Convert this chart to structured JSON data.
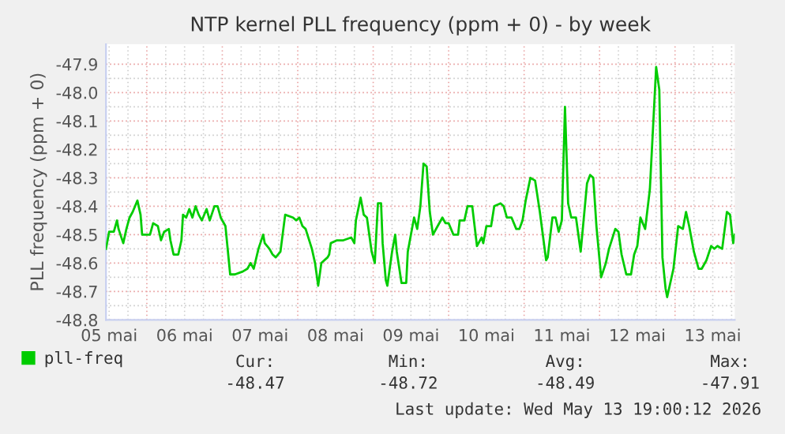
{
  "chart_data": {
    "type": "line",
    "title": "NTP kernel PLL frequency (ppm + 0) - by week",
    "ylabel": "PLL frequency (ppm + 0)",
    "x": [
      "2026-05-05T11:00",
      "2026-05-05T12:00",
      "2026-05-05T13:30",
      "2026-05-05T14:30",
      "2026-05-05T15:00",
      "2026-05-05T16:30",
      "2026-05-05T17:30",
      "2026-05-05T18:30",
      "2026-05-05T19:30",
      "2026-05-05T21:00",
      "2026-05-05T22:00",
      "2026-05-05T22:30",
      "2026-05-06T01:00",
      "2026-05-06T02:00",
      "2026-05-06T03:30",
      "2026-05-06T04:30",
      "2026-05-06T05:30",
      "2026-05-06T07:00",
      "2026-05-06T07:30",
      "2026-05-06T08:30",
      "2026-05-06T10:00",
      "2026-05-06T11:00",
      "2026-05-06T11:30",
      "2026-05-06T12:30",
      "2026-05-06T13:30",
      "2026-05-06T14:30",
      "2026-05-06T15:30",
      "2026-05-06T16:30",
      "2026-05-06T17:30",
      "2026-05-06T19:00",
      "2026-05-06T20:00",
      "2026-05-06T21:30",
      "2026-05-06T22:30",
      "2026-05-06T23:30",
      "2026-05-07T01:00",
      "2026-05-07T02:30",
      "2026-05-07T04:00",
      "2026-05-07T06:30",
      "2026-05-07T08:00",
      "2026-05-07T09:00",
      "2026-05-07T10:00",
      "2026-05-07T11:30",
      "2026-05-07T13:00",
      "2026-05-07T13:30",
      "2026-05-07T15:00",
      "2026-05-07T16:00",
      "2026-05-07T17:00",
      "2026-05-07T18:30",
      "2026-05-07T20:00",
      "2026-05-07T22:30",
      "2026-05-07T23:30",
      "2026-05-08T00:30",
      "2026-05-08T01:30",
      "2026-05-08T02:30",
      "2026-05-08T04:30",
      "2026-05-08T05:30",
      "2026-05-08T06:30",
      "2026-05-08T07:30",
      "2026-05-08T09:30",
      "2026-05-08T10:00",
      "2026-05-08T10:30",
      "2026-05-08T12:30",
      "2026-05-08T14:30",
      "2026-05-08T17:00",
      "2026-05-08T18:00",
      "2026-05-08T18:30",
      "2026-05-08T20:00",
      "2026-05-08T21:00",
      "2026-05-08T22:00",
      "2026-05-08T23:30",
      "2026-05-09T00:30",
      "2026-05-09T01:30",
      "2026-05-09T02:30",
      "2026-05-09T03:00",
      "2026-05-09T04:00",
      "2026-05-09T04:30",
      "2026-05-09T06:00",
      "2026-05-09T07:00",
      "2026-05-09T07:30",
      "2026-05-09T09:00",
      "2026-05-09T10:30",
      "2026-05-09T11:00",
      "2026-05-09T12:00",
      "2026-05-09T13:00",
      "2026-05-09T14:00",
      "2026-05-09T15:00",
      "2026-05-09T16:00",
      "2026-05-09T17:00",
      "2026-05-09T18:00",
      "2026-05-09T19:00",
      "2026-05-09T20:30",
      "2026-05-09T22:00",
      "2026-05-09T23:00",
      "2026-05-10T00:00",
      "2026-05-10T01:30",
      "2026-05-10T03:00",
      "2026-05-10T03:30",
      "2026-05-10T05:00",
      "2026-05-10T06:00",
      "2026-05-10T07:30",
      "2026-05-10T09:00",
      "2026-05-10T10:30",
      "2026-05-10T11:00",
      "2026-05-10T12:00",
      "2026-05-10T13:30",
      "2026-05-10T14:30",
      "2026-05-10T16:30",
      "2026-05-10T17:30",
      "2026-05-10T18:30",
      "2026-05-10T20:00",
      "2026-05-10T21:30",
      "2026-05-10T22:30",
      "2026-05-10T23:30",
      "2026-05-11T00:30",
      "2026-05-11T02:00",
      "2026-05-11T03:30",
      "2026-05-11T05:00",
      "2026-05-11T07:00",
      "2026-05-11T07:30",
      "2026-05-11T09:00",
      "2026-05-11T10:00",
      "2026-05-11T11:00",
      "2026-05-11T12:00",
      "2026-05-11T13:00",
      "2026-05-11T14:00",
      "2026-05-11T15:00",
      "2026-05-11T16:30",
      "2026-05-11T18:00",
      "2026-05-11T20:00",
      "2026-05-11T21:00",
      "2026-05-11T22:00",
      "2026-05-11T23:00",
      "2026-05-12T00:30",
      "2026-05-12T02:00",
      "2026-05-12T03:00",
      "2026-05-12T05:00",
      "2026-05-12T06:00",
      "2026-05-12T07:00",
      "2026-05-12T08:30",
      "2026-05-12T10:00",
      "2026-05-12T11:00",
      "2026-05-12T12:00",
      "2026-05-12T13:00",
      "2026-05-12T14:30",
      "2026-05-12T16:00",
      "2026-05-12T18:00",
      "2026-05-12T19:00",
      "2026-05-12T19:30",
      "2026-05-12T20:00",
      "2026-05-12T21:00",
      "2026-05-12T21:30",
      "2026-05-12T22:30",
      "2026-05-12T23:30",
      "2026-05-13T01:00",
      "2026-05-13T02:30",
      "2026-05-13T03:30",
      "2026-05-13T04:30",
      "2026-05-13T06:00",
      "2026-05-13T07:30",
      "2026-05-13T08:30",
      "2026-05-13T10:00",
      "2026-05-13T11:30",
      "2026-05-13T12:30",
      "2026-05-13T13:30",
      "2026-05-13T15:00",
      "2026-05-13T16:30",
      "2026-05-13T17:30",
      "2026-05-13T18:30",
      "2026-05-13T19:00"
    ],
    "series": [
      {
        "name": "pll-freq",
        "color": "#00cc00",
        "values": [
          -48.55,
          -48.49,
          -48.49,
          -48.45,
          -48.48,
          -48.53,
          -48.48,
          -48.44,
          -48.42,
          -48.38,
          -48.43,
          -48.5,
          -48.5,
          -48.46,
          -48.47,
          -48.52,
          -48.49,
          -48.48,
          -48.52,
          -48.57,
          -48.57,
          -48.52,
          -48.43,
          -48.44,
          -48.41,
          -48.44,
          -48.4,
          -48.43,
          -48.45,
          -48.41,
          -48.45,
          -48.4,
          -48.4,
          -48.44,
          -48.47,
          -48.64,
          -48.64,
          -48.63,
          -48.62,
          -48.6,
          -48.62,
          -48.55,
          -48.5,
          -48.53,
          -48.55,
          -48.57,
          -48.58,
          -48.56,
          -48.43,
          -48.44,
          -48.45,
          -48.44,
          -48.47,
          -48.48,
          -48.55,
          -48.6,
          -48.68,
          -48.6,
          -48.58,
          -48.57,
          -48.53,
          -48.52,
          -48.52,
          -48.51,
          -48.53,
          -48.45,
          -48.37,
          -48.43,
          -48.44,
          -48.56,
          -48.6,
          -48.39,
          -48.39,
          -48.53,
          -48.66,
          -48.68,
          -48.56,
          -48.5,
          -48.56,
          -48.67,
          -48.67,
          -48.56,
          -48.5,
          -48.44,
          -48.48,
          -48.4,
          -48.25,
          -48.26,
          -48.42,
          -48.5,
          -48.47,
          -48.44,
          -48.46,
          -48.46,
          -48.5,
          -48.5,
          -48.45,
          -48.45,
          -48.4,
          -48.4,
          -48.54,
          -48.51,
          -48.53,
          -48.47,
          -48.47,
          -48.4,
          -48.39,
          -48.4,
          -48.44,
          -48.44,
          -48.48,
          -48.48,
          -48.45,
          -48.38,
          -48.3,
          -48.31,
          -48.42,
          -48.59,
          -48.58,
          -48.44,
          -48.44,
          -48.49,
          -48.45,
          -48.05,
          -48.39,
          -48.44,
          -48.44,
          -48.56,
          -48.32,
          -48.29,
          -48.3,
          -48.47,
          -48.65,
          -48.6,
          -48.55,
          -48.48,
          -48.49,
          -48.57,
          -48.64,
          -48.64,
          -48.57,
          -48.54,
          -48.44,
          -48.48,
          -48.34,
          -47.91,
          -47.99,
          -48.29,
          -48.58,
          -48.69,
          -48.72,
          -48.67,
          -48.62,
          -48.47,
          -48.48,
          -48.42,
          -48.47,
          -48.56,
          -48.62,
          -48.62,
          -48.59,
          -48.54,
          -48.55,
          -48.54,
          -48.55,
          -48.42,
          -48.43,
          -48.53,
          -48.5
        ]
      }
    ],
    "xlim": [
      "2026-05-05T11:00",
      "2026-05-13T19:00"
    ],
    "xticks": [
      {
        "value": "2026-05-05T12:00",
        "label": "05 mai"
      },
      {
        "value": "2026-05-06T12:00",
        "label": "06 mai"
      },
      {
        "value": "2026-05-07T12:00",
        "label": "07 mai"
      },
      {
        "value": "2026-05-08T12:00",
        "label": "08 mai"
      },
      {
        "value": "2026-05-09T12:00",
        "label": "09 mai"
      },
      {
        "value": "2026-05-10T12:00",
        "label": "10 mai"
      },
      {
        "value": "2026-05-11T12:00",
        "label": "11 mai"
      },
      {
        "value": "2026-05-12T12:00",
        "label": "12 mai"
      },
      {
        "value": "2026-05-13T12:00",
        "label": "13 mai"
      }
    ],
    "ylim": [
      -48.8,
      -47.83
    ],
    "yticks": [
      {
        "value": -48.8,
        "label": "-48.8"
      },
      {
        "value": -48.7,
        "label": "-48.7"
      },
      {
        "value": -48.6,
        "label": "-48.6"
      },
      {
        "value": -48.5,
        "label": "-48.5"
      },
      {
        "value": -48.4,
        "label": "-48.4"
      },
      {
        "value": -48.3,
        "label": "-48.3"
      },
      {
        "value": -48.2,
        "label": "-48.2"
      },
      {
        "value": -48.1,
        "label": "-48.1"
      },
      {
        "value": -48.0,
        "label": "-48.0"
      },
      {
        "value": -47.9,
        "label": "-47.9"
      }
    ],
    "grid": true,
    "legend": "bottom",
    "marker": "none",
    "line_style": "solid",
    "annotations": [
      "Cur:",
      "-48.47",
      "Min:",
      "-48.72",
      "Avg:",
      "-48.49",
      "Max:",
      "-47.91",
      "Last update: Wed May 13 19:00:12 2026"
    ]
  }
}
